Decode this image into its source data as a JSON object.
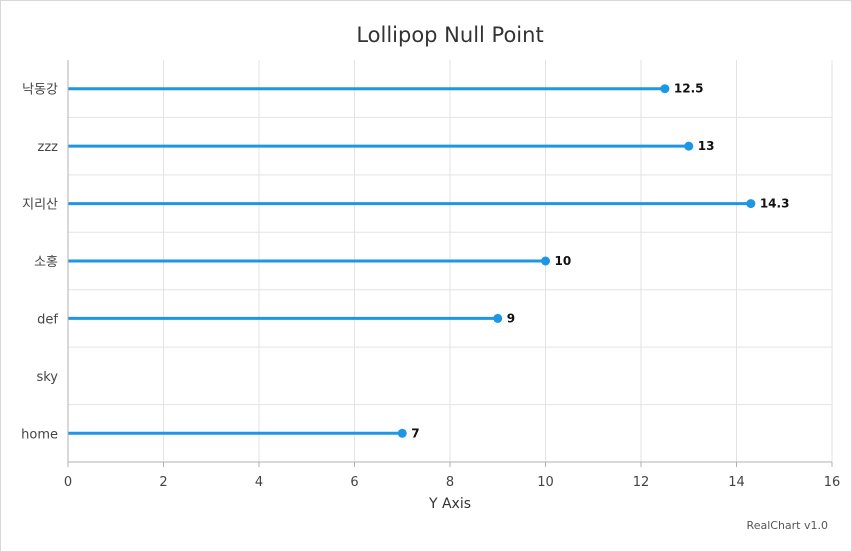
{
  "chart_data": {
    "type": "lollipop",
    "title": "Lollipop Null Point",
    "categories": [
      "낙동강",
      "zzz",
      "지리산",
      "소홍",
      "def",
      "sky",
      "home"
    ],
    "values": [
      12.5,
      13,
      14.3,
      10,
      9,
      null,
      7
    ],
    "data_labels": [
      "12.5",
      "13",
      "14.3",
      "10",
      "9",
      "",
      "7"
    ],
    "xlabel": "Y Axis",
    "xlim": [
      0,
      16
    ],
    "ticks": [
      "0",
      "2",
      "4",
      "6",
      "8",
      "10",
      "12",
      "14",
      "16"
    ],
    "tick_values": [
      0,
      2,
      4,
      6,
      8,
      10,
      12,
      14,
      16
    ],
    "orientation": "horizontal",
    "grid": true,
    "series_color": "#1e96e6"
  },
  "credit": "RealChart v1.0"
}
